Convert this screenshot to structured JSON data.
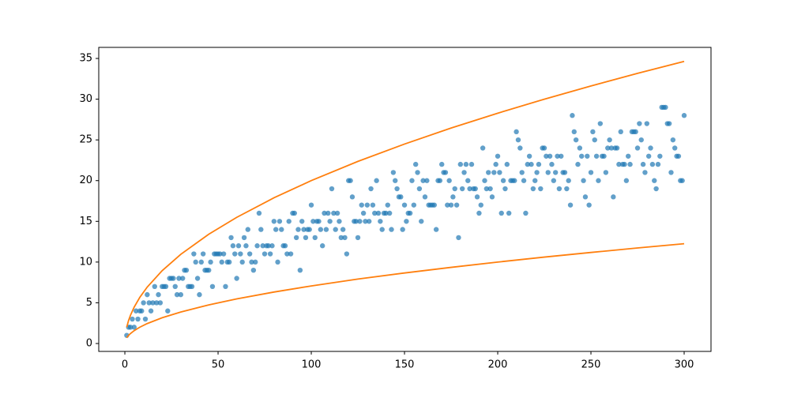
{
  "chart_data": {
    "type": "scatter",
    "xlim": [
      -14,
      314.4
    ],
    "ylim": [
      -0.97,
      36.36
    ],
    "xticks": [
      0,
      50,
      100,
      150,
      200,
      250,
      300
    ],
    "yticks": [
      0,
      5,
      10,
      15,
      20,
      25,
      30,
      35
    ],
    "series": [
      {
        "type": "scatter",
        "color": "#1f77b4",
        "x": [
          1,
          2,
          3,
          4,
          5,
          6,
          7,
          8,
          9,
          10,
          11,
          12,
          13,
          14,
          15,
          16,
          17,
          18,
          19,
          20,
          21,
          22,
          23,
          24,
          25,
          26,
          27,
          28,
          29,
          30,
          31,
          32,
          33,
          34,
          35,
          36,
          37,
          38,
          39,
          40,
          41,
          42,
          43,
          44,
          45,
          46,
          47,
          48,
          49,
          50,
          51,
          52,
          53,
          54,
          55,
          56,
          57,
          58,
          59,
          60,
          61,
          62,
          63,
          64,
          65,
          66,
          67,
          68,
          69,
          70,
          71,
          72,
          73,
          74,
          75,
          76,
          77,
          78,
          79,
          80,
          81,
          82,
          83,
          84,
          85,
          86,
          87,
          88,
          89,
          90,
          91,
          92,
          93,
          94,
          95,
          96,
          97,
          98,
          99,
          100,
          101,
          102,
          103,
          104,
          105,
          106,
          107,
          108,
          109,
          110,
          111,
          112,
          113,
          114,
          115,
          116,
          117,
          118,
          119,
          120,
          121,
          122,
          123,
          124,
          125,
          126,
          127,
          128,
          129,
          130,
          131,
          132,
          133,
          134,
          135,
          136,
          137,
          138,
          139,
          140,
          141,
          142,
          143,
          144,
          145,
          146,
          147,
          148,
          149,
          150,
          151,
          152,
          153,
          154,
          155,
          156,
          157,
          158,
          159,
          160,
          161,
          162,
          163,
          164,
          165,
          166,
          167,
          168,
          169,
          170,
          171,
          172,
          173,
          174,
          175,
          176,
          177,
          178,
          179,
          180,
          181,
          182,
          183,
          184,
          185,
          186,
          187,
          188,
          189,
          190,
          191,
          192,
          193,
          194,
          195,
          196,
          197,
          198,
          199,
          200,
          201,
          202,
          203,
          204,
          205,
          206,
          207,
          208,
          209,
          210,
          211,
          212,
          213,
          214,
          215,
          216,
          217,
          218,
          219,
          220,
          221,
          222,
          223,
          224,
          225,
          226,
          227,
          228,
          229,
          230,
          231,
          232,
          233,
          234,
          235,
          236,
          237,
          238,
          239,
          240,
          241,
          242,
          243,
          244,
          245,
          246,
          247,
          248,
          249,
          250,
          251,
          252,
          253,
          254,
          255,
          256,
          257,
          258,
          259,
          260,
          261,
          262,
          263,
          264,
          265,
          266,
          267,
          268,
          269,
          270,
          271,
          272,
          273,
          274,
          275,
          276,
          277,
          278,
          279,
          280,
          281,
          282,
          283,
          284,
          285,
          286,
          287,
          288,
          289,
          290,
          291,
          292,
          293,
          294,
          295,
          296,
          297,
          298,
          299,
          300
        ],
        "values": [
          1,
          2,
          2,
          3,
          2,
          4,
          3,
          4,
          4,
          5,
          3,
          6,
          5,
          4,
          5,
          7,
          5,
          6,
          5,
          7,
          7,
          7,
          4,
          8,
          8,
          8,
          7,
          6,
          8,
          6,
          8,
          9,
          9,
          7,
          7,
          7,
          11,
          10,
          8,
          6,
          10,
          11,
          9,
          9,
          9,
          10,
          7,
          11,
          11,
          11,
          11,
          10,
          11,
          7,
          10,
          10,
          13,
          12,
          11,
          8,
          12,
          11,
          10,
          13,
          12,
          14,
          11,
          10,
          9,
          10,
          12,
          16,
          14,
          12,
          11,
          12,
          12,
          11,
          12,
          15,
          14,
          10,
          15,
          14,
          12,
          12,
          11,
          15,
          11,
          16,
          16,
          13,
          14,
          9,
          15,
          14,
          13,
          14,
          14,
          17,
          15,
          13,
          15,
          15,
          14,
          12,
          16,
          14,
          16,
          15,
          19,
          16,
          14,
          16,
          15,
          13,
          14,
          13,
          11,
          20,
          20,
          18,
          15,
          15,
          13,
          15,
          17,
          16,
          15,
          17,
          15,
          19,
          17,
          16,
          20,
          16,
          15,
          14,
          16,
          16,
          17,
          16,
          14,
          21,
          20,
          19,
          18,
          18,
          14,
          17,
          15,
          16,
          16,
          20,
          17,
          22,
          21,
          19,
          15,
          20,
          18,
          20,
          17,
          17,
          17,
          17,
          14,
          20,
          20,
          22,
          21,
          21,
          17,
          20,
          17,
          18,
          19,
          17,
          13,
          22,
          19,
          21,
          22,
          20,
          19,
          22,
          19,
          19,
          18,
          16,
          17,
          24,
          20,
          19,
          21,
          19,
          18,
          21,
          22,
          23,
          21,
          16,
          20,
          19,
          22,
          16,
          20,
          20,
          20,
          26,
          25,
          24,
          21,
          20,
          16,
          22,
          23,
          22,
          19,
          20,
          21,
          22,
          19,
          24,
          24,
          23,
          21,
          23,
          22,
          20,
          21,
          23,
          19,
          23,
          21,
          21,
          19,
          20,
          17,
          28,
          26,
          25,
          22,
          24,
          23,
          20,
          18,
          23,
          17,
          21,
          26,
          25,
          23,
          20,
          27,
          23,
          23,
          21,
          24,
          25,
          24,
          18,
          24,
          24,
          22,
          26,
          22,
          22,
          20,
          23,
          22,
          26,
          26,
          26,
          24,
          27,
          25,
          22,
          21,
          27,
          23,
          24,
          22,
          20,
          19,
          22,
          23,
          29,
          29,
          29,
          27,
          27,
          21,
          25,
          24,
          23,
          23,
          20,
          20,
          28
        ]
      },
      {
        "type": "line",
        "color": "#ff7f0e",
        "x": [
          1,
          2,
          3,
          5,
          8,
          12,
          20,
          30,
          45,
          60,
          80,
          100,
          125,
          150,
          175,
          200,
          225,
          250,
          275,
          300
        ],
        "values": [
          2,
          2.83,
          3.46,
          4.47,
          5.66,
          6.93,
          8.94,
          10.95,
          13.42,
          15.49,
          17.89,
          20,
          22.36,
          24.49,
          26.46,
          28.28,
          30,
          31.62,
          33.17,
          34.64
        ]
      },
      {
        "type": "line",
        "color": "#ff7f0e",
        "x": [
          1,
          2,
          3,
          5,
          8,
          12,
          20,
          30,
          45,
          60,
          80,
          100,
          125,
          150,
          175,
          200,
          225,
          250,
          275,
          300
        ],
        "values": [
          0.71,
          1,
          1.22,
          1.58,
          2,
          2.45,
          3.16,
          3.87,
          4.74,
          5.48,
          6.32,
          7.07,
          7.91,
          8.66,
          9.35,
          10,
          10.61,
          11.18,
          11.73,
          12.25
        ]
      }
    ]
  }
}
